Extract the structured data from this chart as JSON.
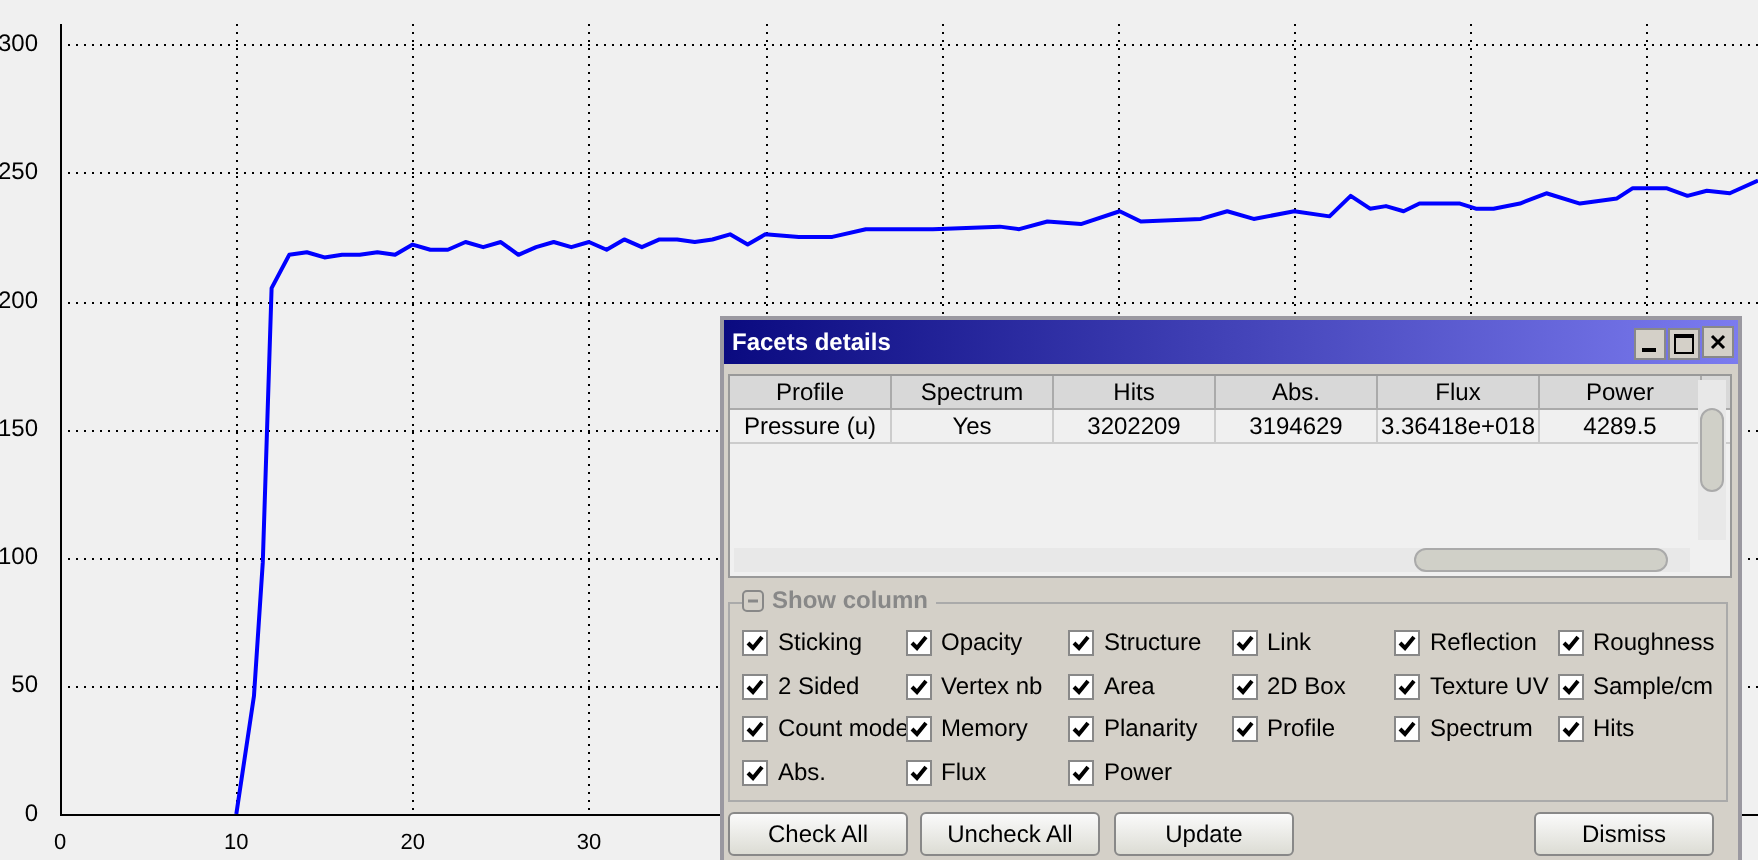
{
  "chart_data": [
    {
      "type": "line",
      "x": [
        10,
        11,
        11.5,
        12,
        13,
        14,
        15,
        16,
        17,
        18,
        19,
        20,
        21,
        22,
        23,
        24,
        25,
        26,
        27,
        28,
        29,
        30,
        31,
        32,
        33,
        34,
        35,
        36,
        37,
        38,
        39,
        40,
        41.9,
        43.8,
        45.7,
        49.5,
        53.3,
        54.4,
        56,
        57.9,
        60.1,
        61.3,
        64.7,
        66.2,
        67.7,
        70,
        72,
        73.2,
        74.3,
        75.2,
        76.2,
        77.1,
        79.4,
        80.3,
        81.3,
        82.8,
        84.3,
        86.2,
        88.3,
        89.2,
        91.1,
        92.3,
        93.4,
        94.7,
        96.3
      ],
      "series": [
        {
          "color": "#0000ff",
          "values": [
            0,
            46,
            98,
            205,
            218,
            219,
            217,
            218,
            218,
            219,
            218,
            222,
            220,
            220,
            223,
            221,
            223,
            218,
            221,
            223,
            221,
            223,
            220,
            224,
            221,
            224,
            224,
            223,
            224,
            226,
            222,
            226,
            225,
            225,
            228,
            228,
            229,
            228,
            231,
            230,
            235,
            231,
            232,
            235,
            232,
            235,
            233,
            241,
            236,
            237,
            235,
            238,
            238,
            236,
            236,
            238,
            242,
            238,
            240,
            244,
            244,
            241,
            243,
            242,
            247
          ]
        }
      ],
      "xlim": [
        0,
        96.3
      ],
      "xticks": [
        0,
        10,
        20,
        30,
        {
          "value": 40,
          "label": null
        },
        {
          "value": 50,
          "label": null
        },
        {
          "value": 60,
          "label": null
        },
        {
          "value": 70,
          "label": null
        },
        {
          "value": 80,
          "label": null
        },
        {
          "value": 90,
          "label": null
        }
      ],
      "ylim": [
        0,
        308
      ],
      "yticks": [
        0,
        50,
        100,
        150,
        200,
        250,
        300
      ],
      "grid": true,
      "legend": false,
      "marker": "none",
      "line_style": "solid"
    },
    {
      "type": "other",
      "title": "Facets details",
      "annotations": [
        "Profile",
        "Spectrum",
        "Hits",
        "Abs.",
        "Flux",
        "Power",
        "Pressure (u)",
        "Yes",
        "3202209",
        "3194629",
        "3.36418e+018",
        "4289.5",
        "Show column",
        "Sticking",
        "Opacity",
        "Structure",
        "Link",
        "Reflection",
        "Roughness",
        "2 Sided",
        "Vertex nb",
        "Area",
        "2D Box",
        "Texture UV",
        "Sample/cm",
        "Count mode",
        "Memory",
        "Planarity",
        "Profile",
        "Spectrum",
        "Hits",
        "Abs.",
        "Flux",
        "Power",
        "Check All",
        "Uncheck All",
        "Update",
        "Dismiss"
      ]
    }
  ]
}
